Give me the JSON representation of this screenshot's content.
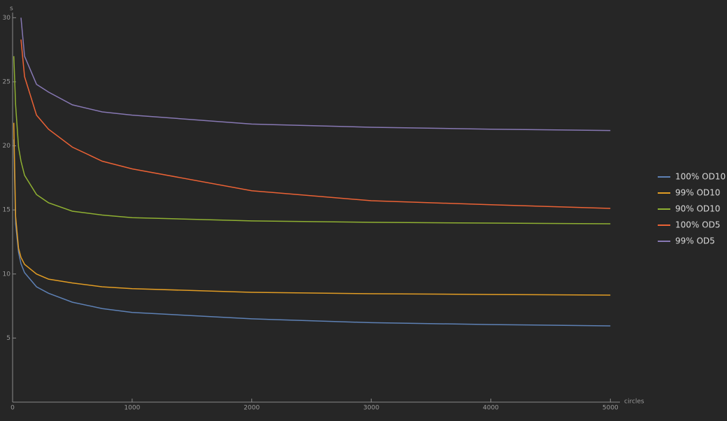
{
  "chart_data": {
    "type": "line",
    "x_label": "circles",
    "y_label": "s",
    "x": [
      10,
      25,
      50,
      70,
      100,
      200,
      300,
      500,
      750,
      1000,
      2000,
      3000,
      4000,
      5000
    ],
    "series": [
      {
        "name": "100% OD10",
        "color": "#5e81b5",
        "values": [
          20.5,
          13.9,
          11.7,
          10.8,
          10.1,
          9.0,
          8.5,
          7.8,
          7.3,
          7.0,
          6.5,
          6.2,
          6.05,
          5.95
        ]
      },
      {
        "name": "99% OD10",
        "color": "#e19c24",
        "values": [
          21.8,
          14.5,
          12.0,
          11.3,
          10.75,
          10.0,
          9.6,
          9.3,
          9.0,
          8.85,
          8.57,
          8.46,
          8.4,
          8.35
        ]
      },
      {
        "name": "90% OD10",
        "color": "#8fb032",
        "values": [
          27.0,
          23.2,
          19.9,
          18.8,
          17.7,
          16.2,
          15.56,
          14.9,
          14.6,
          14.4,
          14.14,
          14.03,
          13.97,
          13.92
        ]
      },
      {
        "name": "100% OD5",
        "color": "#eb6235",
        "values": [
          null,
          null,
          null,
          28.3,
          25.4,
          22.4,
          21.3,
          19.9,
          18.8,
          18.2,
          16.5,
          15.72,
          15.4,
          15.12
        ]
      },
      {
        "name": "99% OD5",
        "color": "#8778b3",
        "values": [
          null,
          null,
          null,
          30.0,
          27.0,
          24.8,
          24.2,
          23.2,
          22.65,
          22.4,
          21.7,
          21.45,
          21.3,
          21.2
        ]
      }
    ],
    "xlim": [
      0,
      5080
    ],
    "ylim": [
      0,
      30.4
    ],
    "xticks": [
      0,
      1000,
      2000,
      3000,
      4000,
      5000
    ],
    "yticks": [
      5,
      10,
      15,
      20,
      25,
      30
    ],
    "legend": "right"
  }
}
